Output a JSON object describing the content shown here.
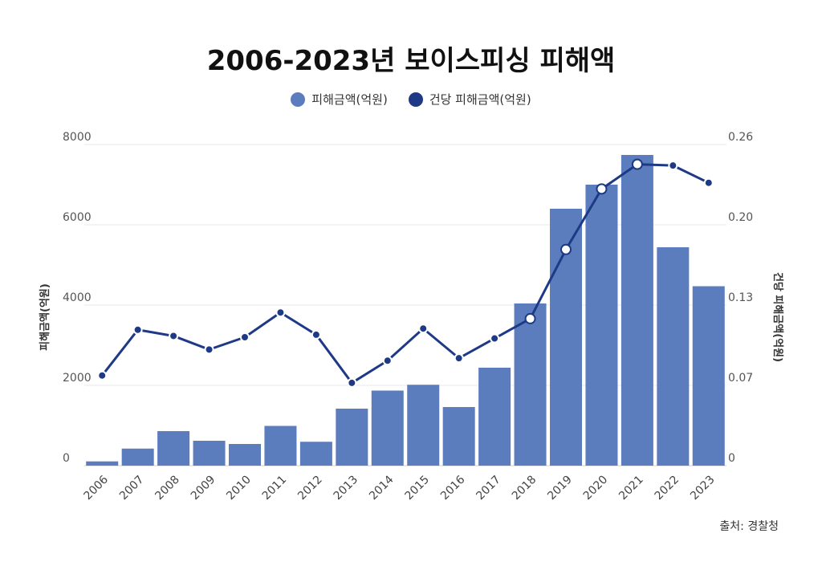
{
  "chart_data": {
    "type": "bar+line",
    "title": "2006-2023년 보이스피싱 피해액",
    "categories": [
      "2006",
      "2007",
      "2008",
      "2009",
      "2010",
      "2011",
      "2012",
      "2013",
      "2014",
      "2015",
      "2016",
      "2017",
      "2018",
      "2019",
      "2020",
      "2021",
      "2022",
      "2023"
    ],
    "series": [
      {
        "name": "피해금액(억원)",
        "type": "bar",
        "axis": "left",
        "color": "#5b7dbd",
        "values": [
          106,
          425,
          860,
          620,
          540,
          990,
          595,
          1420,
          1870,
          2015,
          1460,
          2440,
          4040,
          6400,
          7000,
          7740,
          5440,
          4470
        ]
      },
      {
        "name": "건당 피해금액(억원)",
        "type": "line",
        "axis": "right",
        "color": "#1e3a86",
        "values": [
          0.073,
          0.11,
          0.105,
          0.094,
          0.104,
          0.124,
          0.106,
          0.067,
          0.085,
          0.111,
          0.087,
          0.103,
          0.119,
          0.175,
          0.224,
          0.244,
          0.243,
          0.229
        ]
      }
    ],
    "y_left": {
      "label": "피해금액(억원)",
      "min": 0,
      "max": 8000,
      "ticks": [
        "0",
        "2000",
        "4000",
        "6000",
        "8000"
      ]
    },
    "y_right": {
      "label": "건당 피해금액(억원)",
      "min": 0,
      "max": 0.26,
      "ticks": [
        "0",
        "0.07",
        "0.13",
        "0.20",
        "0.26"
      ]
    },
    "grid": true,
    "legend_position": "top-center",
    "highlighted_points": [
      "2018",
      "2019",
      "2020",
      "2021"
    ]
  },
  "source": "출처: 경찰청"
}
